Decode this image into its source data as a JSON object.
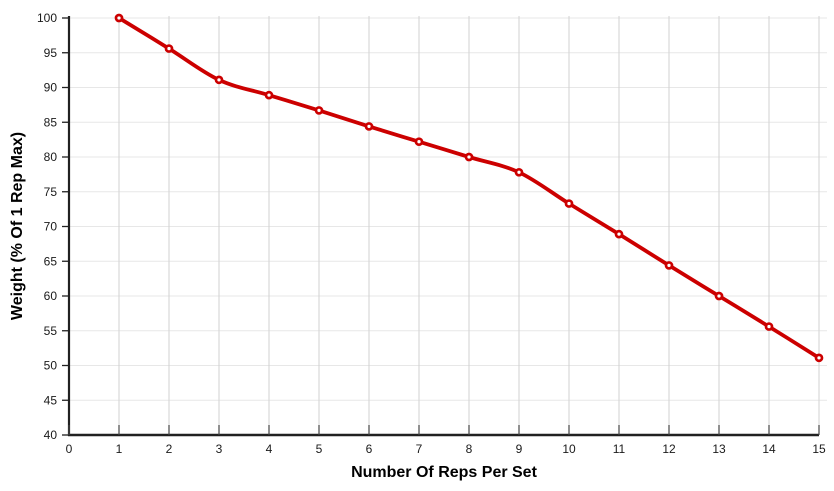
{
  "figure": {
    "background_color": "#ffffff"
  },
  "chart_data": {
    "type": "line",
    "x": [
      1,
      2,
      3,
      4,
      5,
      6,
      7,
      8,
      9,
      10,
      11,
      12,
      13,
      14,
      15
    ],
    "series": [
      {
        "name": "Weight (% Of 1 Rep Max)",
        "values": [
          100,
          95.6,
          91.1,
          88.9,
          86.7,
          84.4,
          82.2,
          80,
          77.8,
          73.3,
          68.9,
          64.4,
          60,
          55.6,
          51.1
        ]
      }
    ],
    "title": "",
    "xlabel": "Number Of Reps Per Set",
    "ylabel": "Weight (% Of 1 Rep Max)",
    "xlim": [
      0,
      15
    ],
    "ylim": [
      40,
      100
    ],
    "x_ticks": [
      0,
      1,
      2,
      3,
      4,
      5,
      6,
      7,
      8,
      9,
      10,
      11,
      12,
      13,
      14,
      15
    ],
    "y_ticks": [
      40,
      45,
      50,
      55,
      60,
      65,
      70,
      75,
      80,
      85,
      90,
      95,
      100
    ],
    "grid": true,
    "legend_position": "none",
    "line_smooth": true,
    "colors": {
      "line": "#CC0000",
      "marker_fill": "#FFFFFF",
      "marker_stroke": "#CC0000",
      "axis": "#212121",
      "grid_vertical": "#d2d2d2",
      "grid_horizontal": "#e7e7e7",
      "tick_label": "#1a1a1a"
    }
  }
}
